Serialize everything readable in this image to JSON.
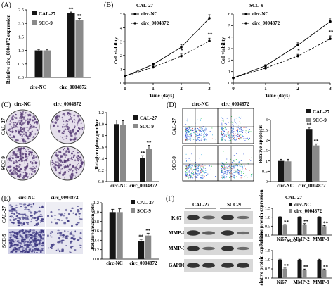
{
  "colors": {
    "cal27": "#151515",
    "scc9": "#8a8a8a",
    "nc_line": "#000000",
    "target_line": "#000000",
    "dish_bg": "#e6e0ec",
    "dish_dot": "#5a3f78",
    "cell_bg": "#dcdcee",
    "cell_dot": "#3a3580",
    "wb_bg": "#d8d8d8",
    "wb_band": "#2a2a2a"
  },
  "panels": {
    "A": {
      "letter": "(A)",
      "legend": [
        "CAL-27",
        "SCC-9"
      ],
      "ylabel": "Relative circ_0004872 expression",
      "categories": [
        "circ-NC",
        "circ_0004872"
      ],
      "yticks": [
        "0.0",
        "0.5",
        "1.0",
        "1.5",
        "2.0",
        "2.5"
      ],
      "sig": [
        "**",
        "**"
      ]
    },
    "B": {
      "letter": "(B)",
      "titles": [
        "CAL-27",
        "SCC-9"
      ],
      "ylabel": "Cell viability",
      "xlabel": "Time (days)",
      "legend": [
        "circ-NC",
        "circ_0004872"
      ],
      "xticks": [
        "0",
        "1",
        "2",
        "3"
      ],
      "yticks": [
        "0",
        "1",
        "2",
        "3",
        "4",
        "5"
      ],
      "yticks_right": [
        "0",
        "1",
        "2",
        "3",
        "4",
        "5",
        "6"
      ],
      "sig": [
        "*",
        "**"
      ]
    },
    "C": {
      "letter": "(C)",
      "col_labels": [
        "circ-NC",
        "circ_0004872"
      ],
      "row_labels": [
        "CAL-27",
        "SCC-9"
      ],
      "ylabel": "Relative colony number",
      "legend": [
        "CAL-27",
        "SCC-9"
      ],
      "categories": [
        "circ-NC",
        "circ_0004872"
      ],
      "yticks": [
        "0.0",
        "0.2",
        "0.4",
        "0.6",
        "0.8",
        "1.0",
        "1.2"
      ],
      "sig": [
        "**",
        "**"
      ]
    },
    "D": {
      "letter": "(D)",
      "col_labels": [
        "circ-NC",
        "circ_0004872"
      ],
      "row_labels": [
        "CAL-27",
        "SCC-9"
      ],
      "ylabel": "Relative apoptosis",
      "legend": [
        "CAL-27",
        "SCC-9"
      ],
      "categories": [
        "circ-NC",
        "circ_0004872"
      ],
      "yticks": [
        "0",
        "0.5",
        "1",
        "1.5",
        "2",
        "2.5",
        "3"
      ],
      "sig": [
        "**",
        "**"
      ]
    },
    "E": {
      "letter": "(E)",
      "col_labels": [
        "circ-NC",
        "circ_0004872"
      ],
      "row_labels": [
        "CAL-27",
        "SCC-9"
      ],
      "ylabel": "Relative invasion cells",
      "legend": [
        "CAL-27",
        "SCC-9"
      ],
      "categories": [
        "circ-NC",
        "circ_0004872"
      ],
      "yticks": [
        "0.0",
        "0.2",
        "0.4",
        "0.6",
        "0.8",
        "1.0",
        "1.2"
      ],
      "sig": [
        "**",
        "**"
      ]
    },
    "F": {
      "letter": "(F)",
      "col_labels": [
        "CAL-27",
        "SCC-9"
      ],
      "rows": [
        "Ki67",
        "MMP-2",
        "MMP-9",
        "GAPDH"
      ],
      "legend": [
        "circ-NC",
        "circ_0004872"
      ],
      "sub_titles": [
        "CAL-27",
        "SCC-9"
      ],
      "ylabel": "Relative protein expression",
      "categories": [
        "Ki67",
        "MMP-2",
        "MMP-9"
      ],
      "yticks": [
        "0.0",
        "0.5",
        "1.0",
        "1.5"
      ],
      "sig": [
        "**",
        "**",
        "**"
      ]
    }
  },
  "chart_data": [
    {
      "panel": "A",
      "type": "bar",
      "title": "",
      "xlabel": "",
      "ylabel": "Relative circ_0004872 expression",
      "categories": [
        "circ-NC",
        "circ_0004872"
      ],
      "ylim": [
        0,
        2.5
      ],
      "series": [
        {
          "name": "CAL-27",
          "values": [
            1.0,
            2.37
          ],
          "errors": [
            0.04,
            0.05
          ]
        },
        {
          "name": "SCC-9",
          "values": [
            1.0,
            2.13
          ],
          "errors": [
            0.04,
            0.05
          ]
        }
      ],
      "legend": "top-left"
    },
    {
      "panel": "B-left",
      "type": "line",
      "title": "CAL-27",
      "xlabel": "Time (days)",
      "ylabel": "Cell viability",
      "x": [
        0,
        1,
        2,
        3
      ],
      "xlim": [
        0,
        3
      ],
      "ylim": [
        0,
        5
      ],
      "series": [
        {
          "name": "circ-NC",
          "values": [
            0.5,
            1.35,
            2.6,
            4.7
          ],
          "errors": [
            0.05,
            0.1,
            0.2,
            0.25
          ]
        },
        {
          "name": "circ_0004872",
          "values": [
            0.5,
            1.15,
            1.95,
            3.05
          ],
          "errors": [
            0.05,
            0.08,
            0.15,
            0.2
          ]
        }
      ],
      "legend": "top-left"
    },
    {
      "panel": "B-right",
      "type": "line",
      "title": "SCC-9",
      "xlabel": "Time (days)",
      "ylabel": "Cell viability",
      "x": [
        0,
        1,
        2,
        3
      ],
      "xlim": [
        0,
        3
      ],
      "ylim": [
        0,
        6
      ],
      "series": [
        {
          "name": "circ-NC",
          "values": [
            0.45,
            1.5,
            3.3,
            5.35
          ],
          "errors": [
            0.05,
            0.1,
            0.2,
            0.3
          ]
        },
        {
          "name": "circ_0004872",
          "values": [
            0.45,
            1.3,
            2.35,
            3.85
          ],
          "errors": [
            0.05,
            0.1,
            0.15,
            0.25
          ]
        }
      ],
      "legend": "top-left"
    },
    {
      "panel": "C",
      "type": "bar",
      "title": "",
      "xlabel": "",
      "ylabel": "Relative colony number",
      "categories": [
        "circ-NC",
        "circ_0004872"
      ],
      "ylim": [
        0,
        1.2
      ],
      "series": [
        {
          "name": "CAL-27",
          "values": [
            1.0,
            0.41
          ],
          "errors": [
            0.07,
            0.04
          ]
        },
        {
          "name": "SCC-9",
          "values": [
            0.98,
            0.57
          ],
          "errors": [
            0.08,
            0.06
          ]
        }
      ],
      "legend": "top-right"
    },
    {
      "panel": "D",
      "type": "bar",
      "title": "",
      "xlabel": "",
      "ylabel": "Relative apoptosis",
      "categories": [
        "circ-NC",
        "circ_0004872"
      ],
      "ylim": [
        0,
        3
      ],
      "series": [
        {
          "name": "CAL-27",
          "values": [
            1.0,
            2.55
          ],
          "errors": [
            0.08,
            0.08
          ]
        },
        {
          "name": "SCC-9",
          "values": [
            0.98,
            1.75
          ],
          "errors": [
            0.1,
            0.08
          ]
        }
      ],
      "legend": "top-right"
    },
    {
      "panel": "E",
      "type": "bar",
      "title": "",
      "xlabel": "",
      "ylabel": "Relative invasion cells",
      "categories": [
        "circ-NC",
        "circ_0004872"
      ],
      "ylim": [
        0,
        1.2
      ],
      "series": [
        {
          "name": "CAL-27",
          "values": [
            1.0,
            0.38
          ],
          "errors": [
            0.06,
            0.04
          ]
        },
        {
          "name": "SCC-9",
          "values": [
            1.0,
            0.5
          ],
          "errors": [
            0.07,
            0.05
          ]
        }
      ],
      "legend": "top-right"
    },
    {
      "panel": "F-top",
      "type": "bar",
      "title": "CAL-27",
      "xlabel": "",
      "ylabel": "Relative protein expression",
      "categories": [
        "Ki67",
        "MMP-2",
        "MMP-9"
      ],
      "ylim": [
        0,
        1.5
      ],
      "series": [
        {
          "name": "circ-NC",
          "values": [
            1.0,
            1.0,
            1.0
          ],
          "errors": [
            0.03,
            0.03,
            0.03
          ]
        },
        {
          "name": "circ_0004872",
          "values": [
            0.55,
            0.6,
            0.5
          ],
          "errors": [
            0.04,
            0.04,
            0.04
          ]
        }
      ],
      "legend": "top-right"
    },
    {
      "panel": "F-bottom",
      "type": "bar",
      "title": "SCC-9",
      "xlabel": "",
      "ylabel": "Relative protein expression",
      "categories": [
        "Ki67",
        "MMP-2",
        "MMP-9"
      ],
      "ylim": [
        0,
        1.5
      ],
      "series": [
        {
          "name": "circ-NC",
          "values": [
            1.0,
            1.0,
            1.0
          ],
          "errors": [
            0.03,
            0.03,
            0.03
          ]
        },
        {
          "name": "circ_0004872",
          "values": [
            0.5,
            0.45,
            0.45
          ],
          "errors": [
            0.04,
            0.04,
            0.04
          ]
        }
      ],
      "legend": "top-right"
    }
  ]
}
